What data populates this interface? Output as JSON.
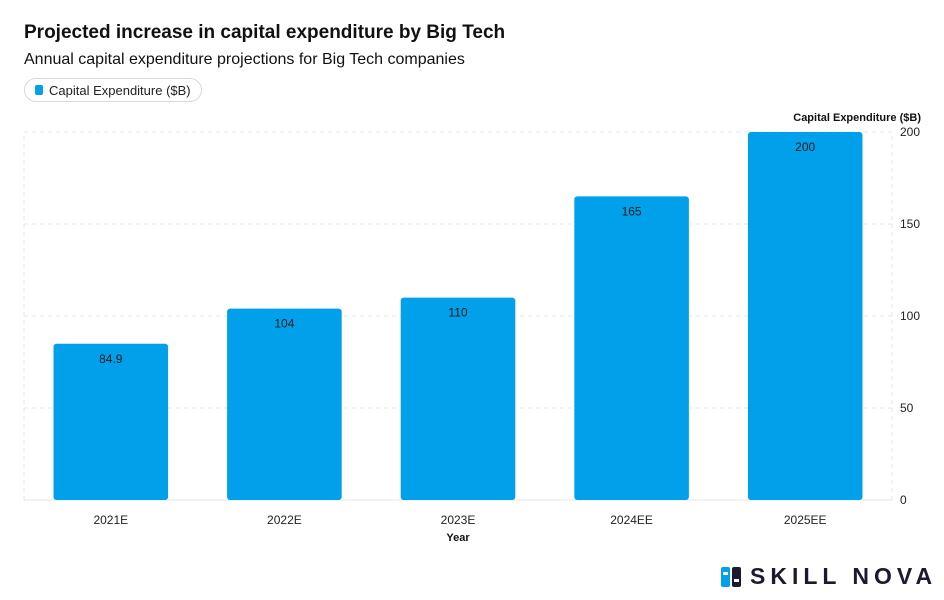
{
  "chart_data": {
    "type": "bar",
    "title": "Projected increase in capital expenditure by Big Tech",
    "subtitle": "Annual capital expenditure projections for Big Tech companies",
    "categories": [
      "2021E",
      "2022E",
      "2023E",
      "2024EE",
      "2025EE"
    ],
    "series": [
      {
        "name": "Capital Expenditure ($B)",
        "values": [
          84.9,
          104,
          110,
          165,
          200
        ],
        "color": "#00a0eb"
      }
    ],
    "data_labels": [
      "84.9",
      "104",
      "110",
      "165",
      "200"
    ],
    "xlabel": "Year",
    "ylabel": "Capital Expenditure ($B)",
    "ylim": [
      0,
      200
    ],
    "yticks": [
      0,
      50,
      100,
      150,
      200
    ],
    "grid": true,
    "legend": "top-left"
  },
  "brand": {
    "logo_text": "SKILL NOVA",
    "logo_icon": "skill-nova-logo-icon",
    "color": "#1b1b2f",
    "accent": "#00a0eb"
  }
}
